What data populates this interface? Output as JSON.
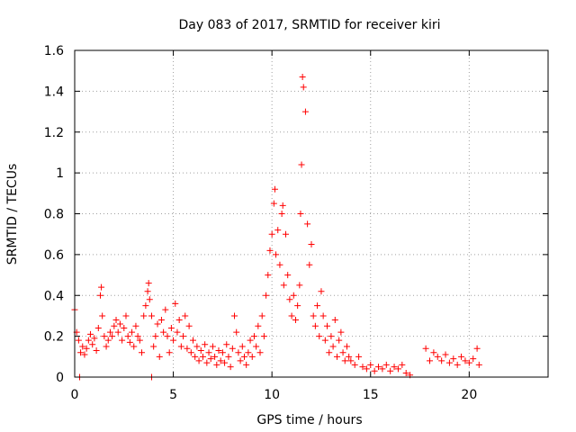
{
  "chart_data": {
    "type": "scatter",
    "title": "Day 083 of 2017, SRMTID for receiver kiri",
    "xlabel": "GPS time / hours",
    "ylabel": "SRMTID / TECUs",
    "xlim": [
      0,
      24
    ],
    "ylim": [
      0,
      1.6
    ],
    "xticks": [
      0,
      5,
      10,
      15,
      20
    ],
    "xtick_labels": [
      "0",
      "5",
      "10",
      "15",
      "20"
    ],
    "yticks": [
      0,
      0.2,
      0.4,
      0.6,
      0.8,
      1,
      1.2,
      1.4,
      1.6
    ],
    "ytick_labels": [
      "0",
      "0.2",
      "0.4",
      "0.6",
      "0.8",
      "1",
      "1.2",
      "1.4",
      "1.6"
    ],
    "grid": true,
    "marker": "+",
    "color": "#ff0000",
    "series": [
      {
        "name": "SRMTID",
        "x": [
          0.0,
          0.1,
          0.2,
          0.3,
          0.4,
          0.5,
          0.6,
          0.7,
          0.8,
          0.9,
          1.0,
          1.1,
          1.2,
          1.3,
          1.35,
          1.4,
          1.5,
          1.6,
          1.7,
          1.8,
          1.9,
          2.0,
          2.1,
          2.2,
          2.3,
          2.4,
          2.5,
          2.6,
          2.7,
          2.8,
          2.9,
          3.0,
          3.1,
          3.2,
          3.3,
          3.4,
          3.5,
          3.6,
          3.7,
          3.75,
          3.8,
          3.9,
          4.0,
          4.1,
          4.2,
          4.3,
          4.4,
          4.5,
          4.6,
          4.7,
          4.8,
          4.9,
          5.0,
          5.1,
          5.2,
          5.3,
          5.4,
          5.5,
          5.6,
          5.7,
          5.8,
          5.9,
          6.0,
          6.1,
          6.2,
          6.3,
          6.4,
          6.5,
          6.6,
          6.7,
          6.8,
          6.9,
          7.0,
          7.1,
          7.2,
          7.3,
          7.4,
          7.5,
          7.6,
          7.7,
          7.8,
          7.9,
          8.0,
          8.1,
          8.2,
          8.3,
          8.4,
          8.5,
          8.6,
          8.7,
          8.8,
          8.9,
          9.0,
          9.1,
          9.2,
          9.3,
          9.4,
          9.5,
          9.6,
          9.7,
          9.8,
          9.9,
          10.0,
          10.1,
          10.15,
          10.2,
          10.3,
          10.4,
          10.5,
          10.55,
          10.6,
          10.7,
          10.8,
          10.9,
          11.0,
          11.1,
          11.2,
          11.3,
          11.4,
          11.45,
          11.5,
          11.55,
          11.6,
          11.7,
          11.8,
          11.9,
          12.0,
          12.1,
          12.2,
          12.3,
          12.4,
          12.5,
          12.6,
          12.7,
          12.8,
          12.9,
          13.0,
          13.1,
          13.2,
          13.3,
          13.4,
          13.5,
          13.6,
          13.7,
          13.8,
          13.9,
          14.0,
          14.2,
          14.4,
          14.6,
          14.8,
          15.0,
          15.2,
          15.4,
          15.6,
          15.8,
          16.0,
          16.2,
          16.4,
          16.6,
          16.8,
          17.0,
          17.8,
          18.0,
          18.2,
          18.4,
          18.6,
          18.8,
          19.0,
          19.2,
          19.4,
          19.6,
          19.8,
          20.0,
          20.2,
          20.4,
          20.5,
          0.25,
          3.9
        ],
        "y": [
          0.33,
          0.22,
          0.18,
          0.12,
          0.15,
          0.11,
          0.14,
          0.18,
          0.21,
          0.16,
          0.19,
          0.13,
          0.24,
          0.4,
          0.44,
          0.3,
          0.2,
          0.15,
          0.18,
          0.22,
          0.2,
          0.25,
          0.28,
          0.22,
          0.26,
          0.18,
          0.24,
          0.3,
          0.2,
          0.17,
          0.22,
          0.15,
          0.25,
          0.2,
          0.18,
          0.12,
          0.3,
          0.35,
          0.42,
          0.46,
          0.38,
          0.3,
          0.15,
          0.2,
          0.26,
          0.1,
          0.28,
          0.22,
          0.33,
          0.2,
          0.12,
          0.24,
          0.18,
          0.36,
          0.22,
          0.28,
          0.15,
          0.2,
          0.3,
          0.14,
          0.25,
          0.12,
          0.18,
          0.1,
          0.15,
          0.08,
          0.13,
          0.1,
          0.16,
          0.07,
          0.12,
          0.09,
          0.15,
          0.1,
          0.06,
          0.13,
          0.08,
          0.12,
          0.07,
          0.16,
          0.1,
          0.05,
          0.14,
          0.3,
          0.22,
          0.12,
          0.08,
          0.15,
          0.1,
          0.06,
          0.12,
          0.18,
          0.1,
          0.2,
          0.15,
          0.25,
          0.12,
          0.3,
          0.2,
          0.4,
          0.5,
          0.62,
          0.7,
          0.85,
          0.92,
          0.6,
          0.72,
          0.55,
          0.8,
          0.84,
          0.45,
          0.7,
          0.5,
          0.38,
          0.3,
          0.4,
          0.28,
          0.35,
          0.45,
          0.8,
          1.04,
          1.47,
          1.42,
          1.3,
          0.75,
          0.55,
          0.65,
          0.3,
          0.25,
          0.35,
          0.2,
          0.42,
          0.3,
          0.18,
          0.25,
          0.12,
          0.2,
          0.15,
          0.28,
          0.1,
          0.18,
          0.22,
          0.12,
          0.08,
          0.15,
          0.1,
          0.08,
          0.06,
          0.1,
          0.05,
          0.04,
          0.06,
          0.03,
          0.05,
          0.04,
          0.06,
          0.03,
          0.05,
          0.04,
          0.06,
          0.02,
          0.01,
          0.14,
          0.08,
          0.12,
          0.1,
          0.08,
          0.11,
          0.07,
          0.09,
          0.06,
          0.1,
          0.08,
          0.07,
          0.09,
          0.14,
          0.06,
          0.0,
          0.0
        ]
      }
    ]
  }
}
